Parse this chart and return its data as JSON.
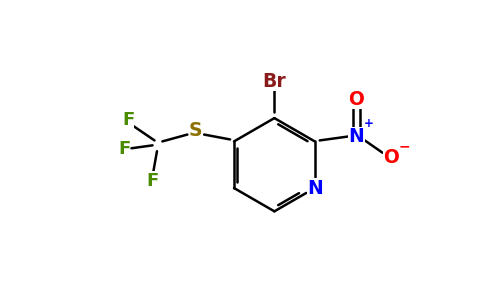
{
  "background_color": "#ffffff",
  "bond_color": "#000000",
  "atom_colors": {
    "Br": "#8B1A1A",
    "N_nitro": "#0000FF",
    "O": "#FF0000",
    "S": "#8B7000",
    "F": "#4B8B00",
    "N_ring": "#0000FF"
  },
  "bond_lw": 1.8,
  "font_size": 13.5
}
